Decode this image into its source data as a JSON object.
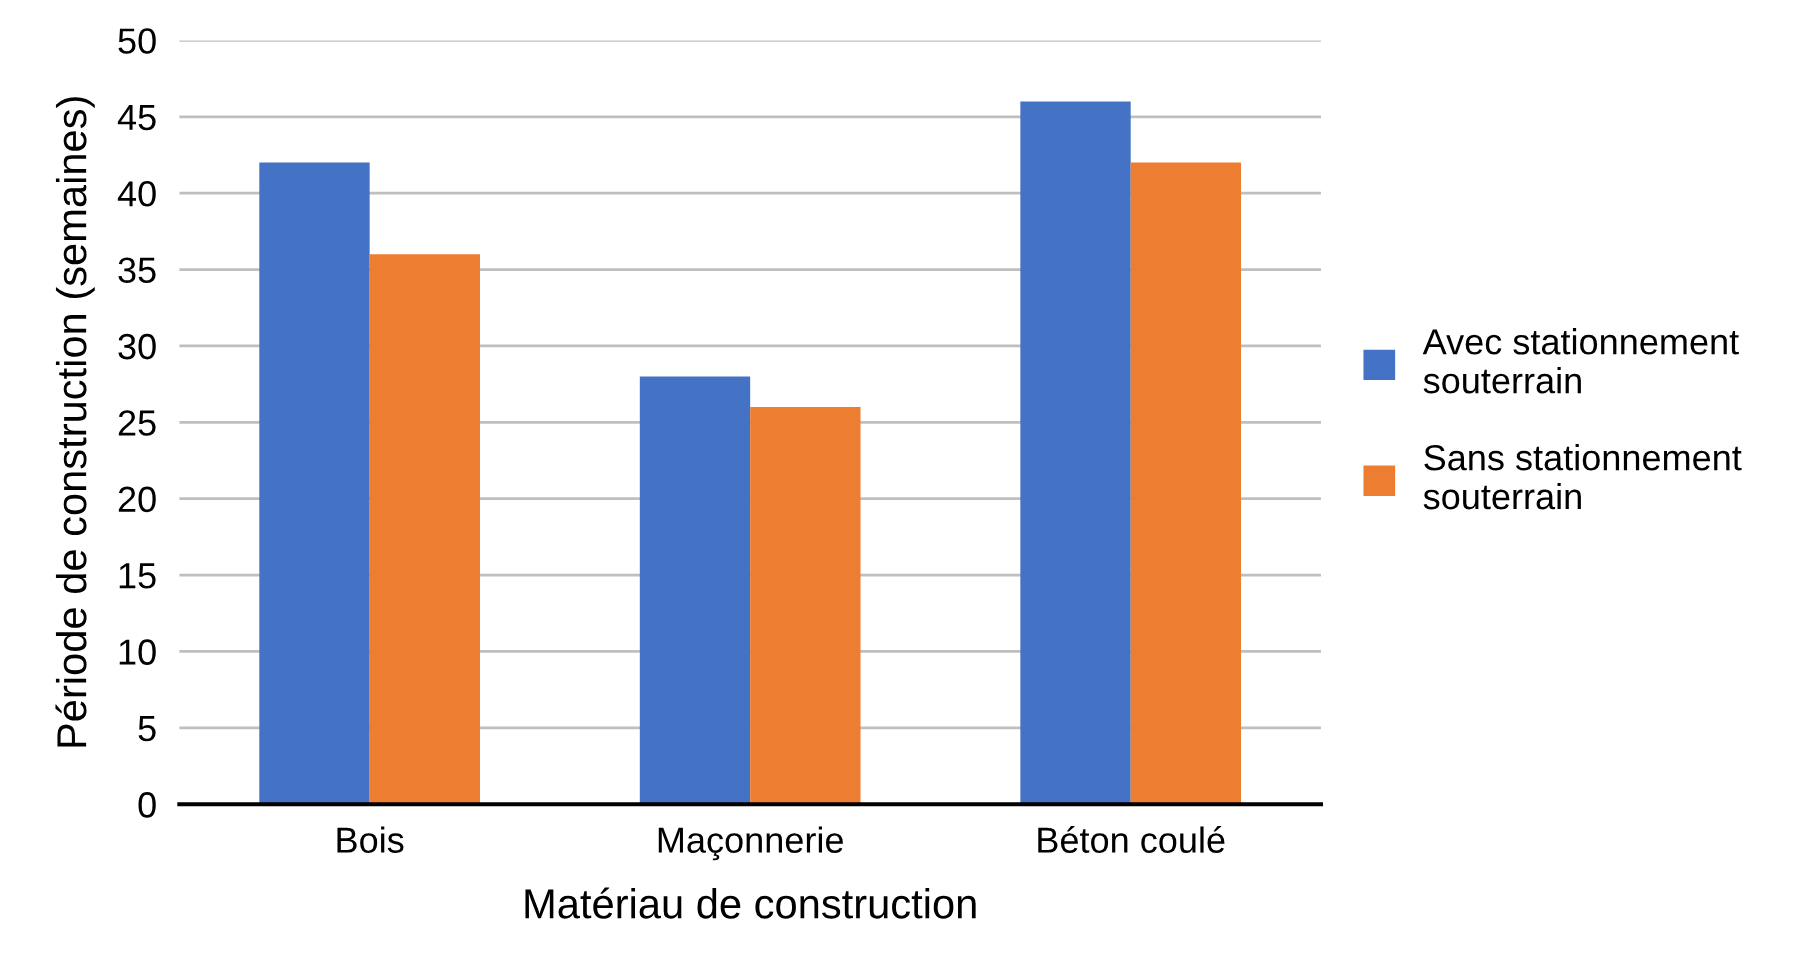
{
  "chart_data": {
    "type": "bar",
    "xlabel": "Matériau de construction",
    "ylabel": "Période de construction (semaines)",
    "categories": [
      "Bois",
      "Maçonnerie",
      "Béton coulé"
    ],
    "series": [
      {
        "name": "Avec stationnement souterrain",
        "color": "#4472c4",
        "values": [
          42,
          28,
          46
        ]
      },
      {
        "name": "Sans stationnement souterrain",
        "color": "#ed7d31",
        "values": [
          36,
          26,
          42
        ]
      }
    ],
    "ylim": [
      0,
      50
    ],
    "yticks": [
      0,
      5,
      10,
      15,
      20,
      25,
      30,
      35,
      40,
      45,
      50
    ],
    "grid": "y",
    "legend": "right"
  }
}
